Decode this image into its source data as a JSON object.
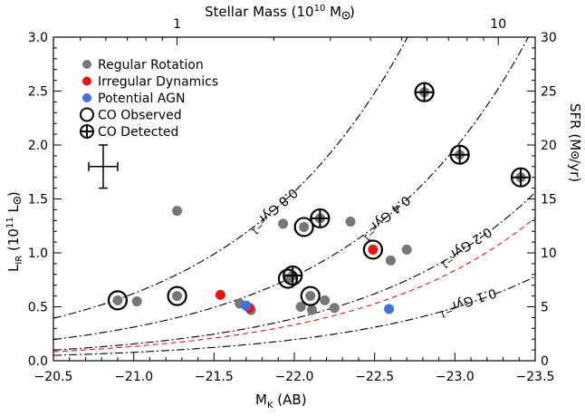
{
  "chart_data": {
    "type": "scatter",
    "xlabel": "M",
    "xlabel_sub": "K",
    "xlabel_unit": "(AB)",
    "ylabel": "L",
    "ylabel_sub": "IR",
    "ylabel_unit_a": "(10",
    "ylabel_unit_exp": "11",
    "ylabel_unit_b": " L",
    "ylabel_unit_c": ")",
    "top_label_a": "Stellar Mass (10",
    "top_label_exp": "10",
    "top_label_b": " M",
    "top_label_c": ")",
    "right_label_a": "SFR (M",
    "right_label_b": "/yr)",
    "xlim": [
      -20.5,
      -23.5
    ],
    "ylim": [
      0,
      3.0
    ],
    "right_ylim": [
      0,
      30
    ],
    "x_ticks": [
      -20.5,
      -21.0,
      -21.5,
      -22.0,
      -22.5,
      -23.0,
      -23.5
    ],
    "x_tick_labels": [
      "−20.5",
      "−21.0",
      "−21.5",
      "−22.0",
      "−22.5",
      "−23.0",
      "−23.5"
    ],
    "y_ticks": [
      0.0,
      0.5,
      1.0,
      1.5,
      2.0,
      2.5,
      3.0
    ],
    "y_tick_labels": [
      "0.0",
      "0.5",
      "1.0",
      "1.5",
      "2.0",
      "2.5",
      "3.0"
    ],
    "right_ticks": [
      0,
      5,
      10,
      15,
      20,
      25,
      30
    ],
    "right_tick_labels": [
      "0",
      "5",
      "10",
      "15",
      "20",
      "25",
      "30"
    ],
    "top_ticks": [
      {
        "mk": -21.27,
        "label": "1"
      },
      {
        "mk": -23.27,
        "label": "10"
      }
    ],
    "legend": {
      "placement": "top-left",
      "items": [
        {
          "marker": "dot",
          "color": "#777777",
          "label": "Regular Rotation"
        },
        {
          "marker": "dot",
          "color": "#ee1111",
          "label": "Irregular Dynamics"
        },
        {
          "marker": "dot",
          "color": "#3f6fe0",
          "label": "Potential AGN"
        },
        {
          "marker": "ring",
          "color": "#000000",
          "label": "CO Observed"
        },
        {
          "marker": "ring-cross",
          "color": "#000000",
          "label": "CO Detected"
        }
      ]
    },
    "error_bar": {
      "x": -20.81,
      "y": 1.8,
      "dx": 0.09,
      "dy": 0.2
    },
    "ssfr_curves": [
      {
        "label": "0.8 Gyr",
        "label_sup": "−1",
        "rate": 0.8,
        "color": "#000000",
        "style": "dash-dot"
      },
      {
        "label": "0.4 Gyr",
        "label_sup": "−1",
        "rate": 0.4,
        "color": "#000000",
        "style": "dash-dot"
      },
      {
        "label": "0.2 Gyr",
        "label_sup": "−1",
        "rate": 0.2,
        "color": "#000000",
        "style": "dash-dot"
      },
      {
        "label": "0.1 Gyr",
        "label_sup": "−1",
        "rate": 0.1,
        "color": "#000000",
        "style": "dash-dot"
      },
      {
        "label": "",
        "label_sup": "",
        "rate": 0.17,
        "color": "#ee1111",
        "style": "dashed"
      }
    ],
    "series": [
      {
        "name": "Regular Rotation",
        "color": "#777777",
        "points": [
          {
            "x": -20.9,
            "y": 0.56,
            "co": "observed"
          },
          {
            "x": -21.02,
            "y": 0.55
          },
          {
            "x": -21.27,
            "y": 1.39
          },
          {
            "x": -21.27,
            "y": 0.6,
            "co": "observed"
          },
          {
            "x": -21.66,
            "y": 0.53
          },
          {
            "x": -21.73,
            "y": 0.47
          },
          {
            "x": -21.93,
            "y": 1.27
          },
          {
            "x": -21.96,
            "y": 0.76,
            "co": "observed"
          },
          {
            "x": -21.99,
            "y": 0.79,
            "co": "detected"
          },
          {
            "x": -22.04,
            "y": 0.5
          },
          {
            "x": -22.06,
            "y": 1.24,
            "co": "observed"
          },
          {
            "x": -22.1,
            "y": 0.6,
            "co": "observed"
          },
          {
            "x": -22.11,
            "y": 0.47
          },
          {
            "x": -22.16,
            "y": 1.32,
            "co": "detected"
          },
          {
            "x": -22.19,
            "y": 0.56
          },
          {
            "x": -22.25,
            "y": 0.49
          },
          {
            "x": -22.35,
            "y": 1.29
          },
          {
            "x": -22.6,
            "y": 0.93
          },
          {
            "x": -22.7,
            "y": 1.03
          },
          {
            "x": -22.81,
            "y": 2.49,
            "co": "detected"
          },
          {
            "x": -23.03,
            "y": 1.91,
            "co": "detected"
          },
          {
            "x": -23.41,
            "y": 1.7,
            "co": "detected"
          }
        ]
      },
      {
        "name": "Irregular Dynamics",
        "color": "#ee1111",
        "points": [
          {
            "x": -21.54,
            "y": 0.61
          },
          {
            "x": -21.72,
            "y": 0.49
          },
          {
            "x": -22.49,
            "y": 1.03,
            "co": "observed"
          }
        ]
      },
      {
        "name": "Potential AGN",
        "color": "#3f6fe0",
        "points": [
          {
            "x": -21.7,
            "y": 0.51
          },
          {
            "x": -22.59,
            "y": 0.48
          }
        ]
      }
    ]
  }
}
